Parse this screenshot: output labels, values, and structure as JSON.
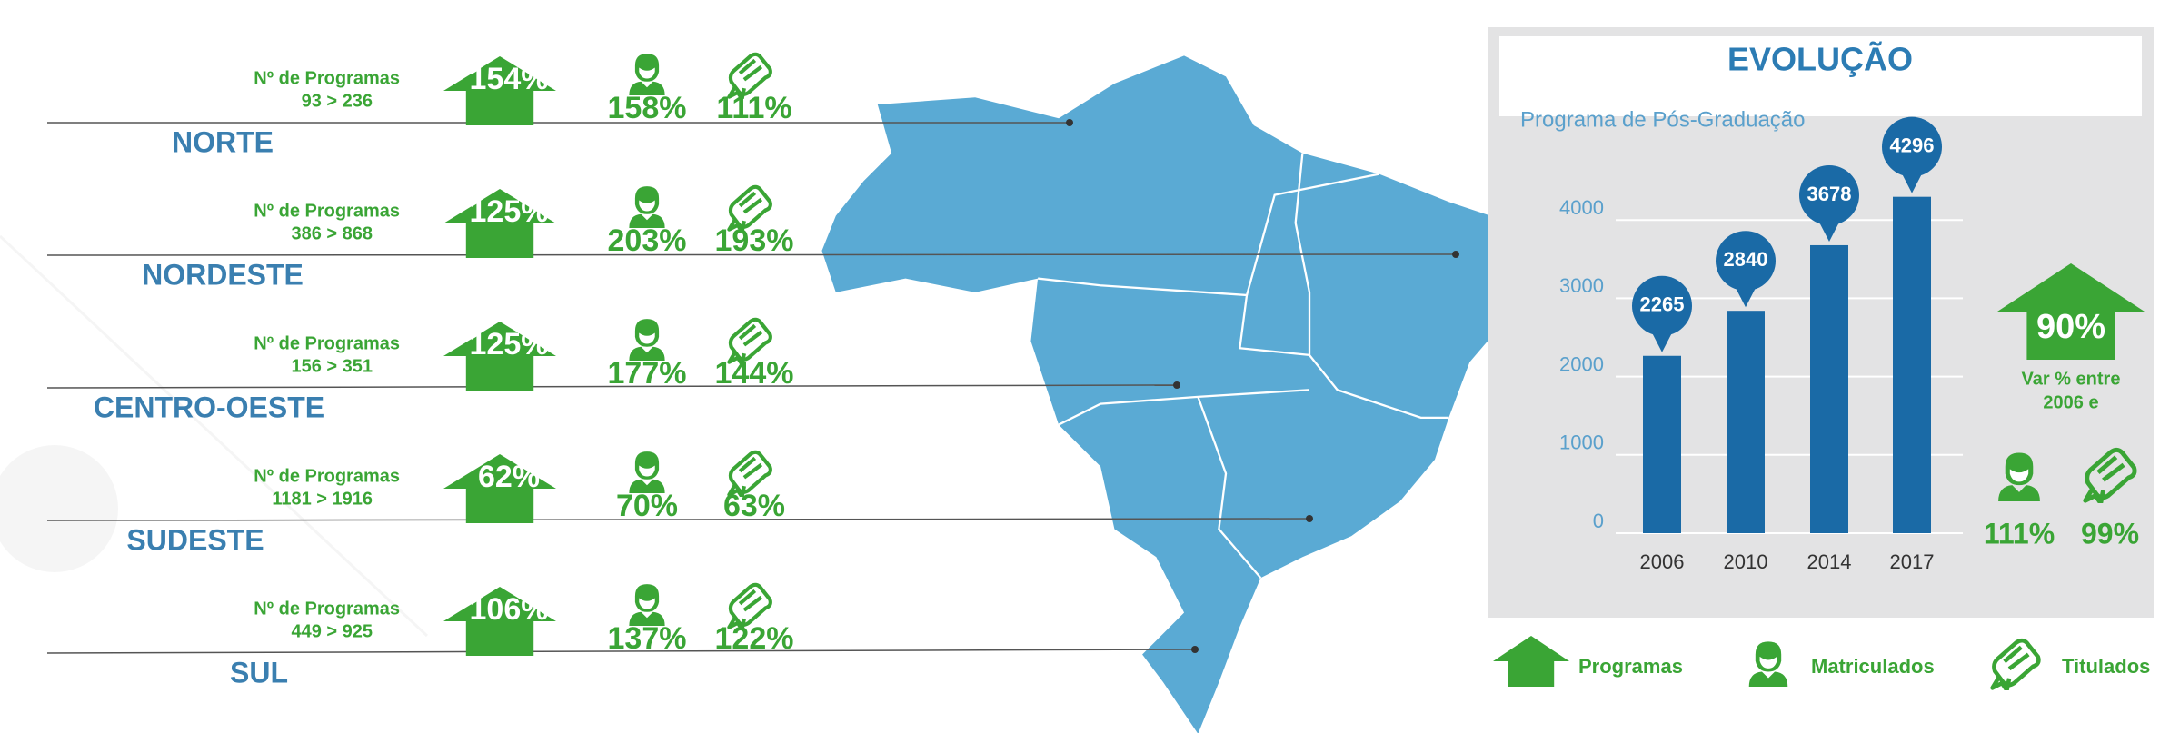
{
  "regions": [
    {
      "label": "Nº de Programas",
      "range": "93 > 236",
      "name": "NORTE",
      "programas": "154%",
      "matriculados": "158%",
      "titulados": "111%"
    },
    {
      "label": "Nº de Programas",
      "range": "386 > 868",
      "name": "NORDESTE",
      "programas": "125%",
      "matriculados": "203%",
      "titulados": "193%"
    },
    {
      "label": "Nº de Programas",
      "range": "156 > 351",
      "name": "CENTRO-OESTE",
      "programas": "125%",
      "matriculados": "177%",
      "titulados": "144%"
    },
    {
      "label": "Nº de Programas",
      "range": "1181 > 1916",
      "name": "SUDESTE",
      "programas": "62%",
      "matriculados": "70%",
      "titulados": "63%"
    },
    {
      "label": "Nº de Programas",
      "range": "449 > 925",
      "name": "SUL",
      "programas": "106%",
      "matriculados": "137%",
      "titulados": "122%"
    }
  ],
  "chart_data": {
    "type": "bar",
    "title": "EVOLUÇÃO",
    "subtitle": "Programa de Pós-Graduação",
    "categories": [
      "2006",
      "2010",
      "2014",
      "2017"
    ],
    "values": [
      2265,
      2840,
      3678,
      4296
    ],
    "color": "#1a6aa6",
    "ylim": [
      0,
      5000
    ],
    "yticks": [
      0,
      1000,
      2000,
      3000,
      4000
    ],
    "grid": true
  },
  "summary": {
    "programas": "90%",
    "note_line1": "Var % entre",
    "note_line2": "2006 e",
    "matriculados": "111%",
    "titulados": "99%"
  },
  "legend": {
    "programas": "Programas",
    "matriculados": "Matriculados",
    "titulados": "Titulados"
  }
}
